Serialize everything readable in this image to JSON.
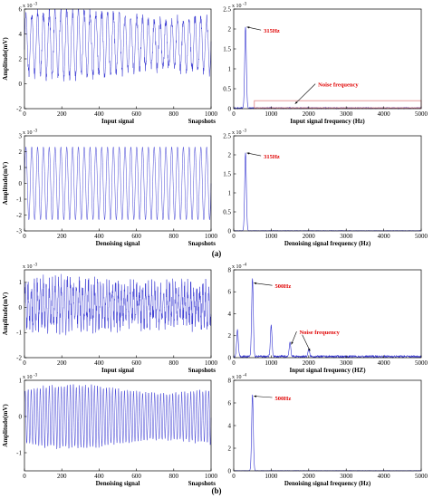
{
  "chart_data": [
    {
      "type": "line",
      "id": "a1",
      "xlabel": "Input signal",
      "xlabel_right": "Snapshots",
      "ylabel": "Amplitude(mV)",
      "exponent": "x 10",
      "exponent_power": "-3",
      "xlim": [
        0,
        1000
      ],
      "ylim": [
        -2,
        6
      ],
      "xticks": [
        0,
        200,
        400,
        600,
        800,
        1000
      ],
      "yticks": [
        -2,
        0,
        2,
        4,
        6
      ],
      "color": "#3030d0",
      "signal": {
        "kind": "sine",
        "cycles": 32,
        "offset": 3.2,
        "amplitude": 2.3,
        "noise": 0.45
      }
    },
    {
      "type": "line",
      "id": "a2",
      "xlabel": "Input signal frequency (Hz)",
      "ylabel": "",
      "exponent": "x 10",
      "exponent_power": "-3",
      "xlim": [
        0,
        5000
      ],
      "ylim": [
        0,
        2.5
      ],
      "xticks": [
        0,
        1000,
        2000,
        3000,
        4000,
        5000
      ],
      "yticks": [
        0,
        0.5,
        1,
        1.5,
        2,
        2.5
      ],
      "color": "#3030d0",
      "signal": {
        "kind": "spectrum",
        "peaks": [
          [
            315,
            2.05
          ]
        ],
        "floor": 0.03
      },
      "annotations": [
        {
          "text": "315Hz",
          "x": 315,
          "y": 2.05,
          "tx": 800,
          "ty": 1.95
        },
        {
          "text": "Noise frequency",
          "x": 1600,
          "y": 0.12,
          "tx": 2250,
          "ty": 0.6
        }
      ],
      "box": {
        "x0": 550,
        "x1": 5000,
        "y0": 0.02,
        "y1": 0.2,
        "color": "#e08080"
      }
    },
    {
      "type": "line",
      "id": "a3",
      "xlabel": "Denoising signal",
      "xlabel_right": "Snapshots",
      "ylabel": "Amplitude(mV)",
      "exponent": "x 10",
      "exponent_power": "-3",
      "xlim": [
        0,
        1000
      ],
      "ylim": [
        -3,
        3
      ],
      "xticks": [
        0,
        200,
        400,
        600,
        800,
        1000
      ],
      "yticks": [
        -3,
        -2,
        -1,
        0,
        1,
        2,
        3
      ],
      "color": "#3030d0",
      "signal": {
        "kind": "sine",
        "cycles": 32,
        "offset": 0,
        "amplitude": 2.3,
        "noise": 0
      }
    },
    {
      "type": "line",
      "id": "a4",
      "xlabel": "Denoising signal frequency (Hz)",
      "ylabel": "",
      "exponent": "x 10",
      "exponent_power": "-3",
      "xlim": [
        0,
        5000
      ],
      "ylim": [
        0,
        2.5
      ],
      "xticks": [
        0,
        1000,
        2000,
        3000,
        4000,
        5000
      ],
      "yticks": [
        0,
        0.5,
        1,
        1.5,
        2,
        2.5
      ],
      "color": "#3030d0",
      "signal": {
        "kind": "spectrum",
        "peaks": [
          [
            315,
            2.05
          ]
        ],
        "floor": 0.01
      },
      "annotations": [
        {
          "text": "315Hz",
          "x": 315,
          "y": 2.05,
          "tx": 800,
          "ty": 1.95
        }
      ]
    },
    {
      "type": "line",
      "id": "b1",
      "xlabel": "Input signal",
      "xlabel_right": "Snapshots",
      "ylabel": "Amplitude(mV)",
      "exponent": "x 10",
      "exponent_power": "-3",
      "xlim": [
        0,
        1000
      ],
      "ylim": [
        -2,
        1.5
      ],
      "xticks": [
        0,
        200,
        400,
        600,
        800,
        1000
      ],
      "yticks": [
        -2,
        -1,
        0,
        1
      ],
      "color": "#3030d0",
      "signal": {
        "kind": "sine",
        "cycles": 62,
        "offset": 0.1,
        "amplitude": 0.7,
        "noise": 0.45
      }
    },
    {
      "type": "line",
      "id": "b2",
      "xlabel": "Input signal frequency (HZ)",
      "ylabel": "",
      "exponent": "x 10",
      "exponent_power": "-4",
      "xlim": [
        0,
        5000
      ],
      "ylim": [
        0,
        8
      ],
      "xticks": [
        0,
        1000,
        2000,
        3000,
        4000,
        5000
      ],
      "yticks": [
        0,
        2,
        4,
        6,
        8
      ],
      "color": "#3030d0",
      "signal": {
        "kind": "spectrum",
        "peaks": [
          [
            100,
            2.4
          ],
          [
            500,
            7.1
          ],
          [
            1000,
            2.8
          ],
          [
            1500,
            1.3
          ],
          [
            2000,
            0.6
          ]
        ],
        "floor": 0.2
      },
      "annotations": [
        {
          "text": "500Hz",
          "x": 500,
          "y": 6.8,
          "tx": 1100,
          "ty": 6.5
        },
        {
          "text": "Noise frequency",
          "x": 1500,
          "y": 1.2,
          "tx": 1750,
          "ty": 2.3
        },
        {
          "text": "",
          "x": 2000,
          "y": 0.6,
          "tx": 1900,
          "ty": 2.0
        }
      ]
    },
    {
      "type": "line",
      "id": "b3",
      "xlabel": "Denoising signal",
      "xlabel_right": "Snapshots",
      "ylabel": "Amplitude(mV)",
      "exponent": "x 10",
      "exponent_power": "-3",
      "xlim": [
        0,
        1000
      ],
      "ylim": [
        -1.5,
        1
      ],
      "xticks": [
        0,
        200,
        400,
        600,
        800,
        1000
      ],
      "yticks": [
        -1,
        0,
        1
      ],
      "color": "#3030d0",
      "signal": {
        "kind": "sine",
        "cycles": 62,
        "offset": 0,
        "amplitude": 0.75,
        "noise": 0.05
      }
    },
    {
      "type": "line",
      "id": "b4",
      "xlabel": "Denoising signal frequency (Hz)",
      "ylabel": "",
      "exponent": "x 10",
      "exponent_power": "-4",
      "xlim": [
        0,
        5000
      ],
      "ylim": [
        0,
        8
      ],
      "xticks": [
        0,
        1000,
        2000,
        3000,
        4000,
        5000
      ],
      "yticks": [
        0,
        2,
        4,
        6,
        8
      ],
      "color": "#3030d0",
      "signal": {
        "kind": "spectrum",
        "peaks": [
          [
            500,
            6.7
          ]
        ],
        "floor": 0.03
      },
      "annotations": [
        {
          "text": "500Hz",
          "x": 500,
          "y": 6.6,
          "tx": 1100,
          "ty": 6.4
        }
      ]
    }
  ],
  "panel_labels": {
    "a": "(a)",
    "b": "(b)"
  }
}
